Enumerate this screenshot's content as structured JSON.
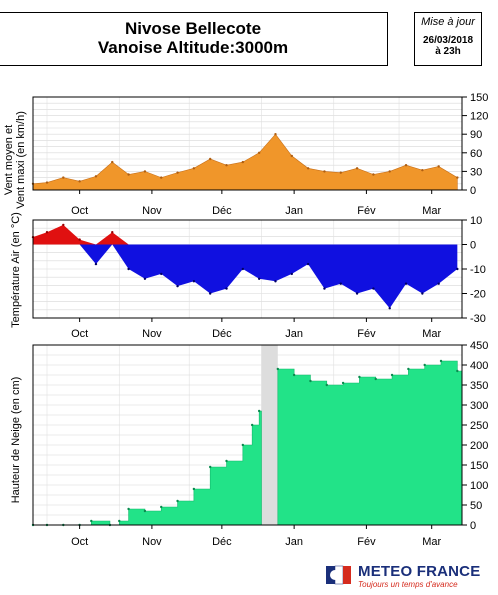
{
  "header": {
    "title_line1": "Nivose Bellecote",
    "title_line2": "Vanoise Altitude:3000m",
    "update_label": "Mise à jour",
    "update_date": "26/03/2018",
    "update_time": "à 23h"
  },
  "logo": {
    "name": "METEO FRANCE",
    "tagline": "Toujours un temps d'avance"
  },
  "colors": {
    "wind": "#f0962a",
    "temp_positive": "#e01010",
    "temp_negative": "#1010e0",
    "snow": "#22e388",
    "gap": "#dddddd"
  },
  "chart_data": [
    {
      "type": "area",
      "ylabel": "Vent moyen et\nVent maxi (en km/h)",
      "ylim": [
        0,
        150
      ],
      "yticks": [
        0,
        30,
        60,
        90,
        120,
        150
      ],
      "x_ticks": [
        "Oct",
        "Nov",
        "Déc",
        "Jan",
        "Fév",
        "Mar"
      ],
      "grid": true,
      "x": [
        "Sep 25",
        "Oct 1",
        "Oct 8",
        "Oct 15",
        "Oct 22",
        "Oct 29",
        "Nov 5",
        "Nov 12",
        "Nov 19",
        "Nov 26",
        "Dec 3",
        "Dec 10",
        "Dec 17",
        "Dec 24",
        "Dec 31",
        "Jan 7",
        "Jan 14",
        "Jan 21",
        "Jan 28",
        "Feb 4",
        "Feb 11",
        "Feb 18",
        "Feb 25",
        "Mar 4",
        "Mar 11",
        "Mar 18",
        "Mar 26"
      ],
      "series": [
        {
          "values": [
            10,
            12,
            20,
            14,
            22,
            45,
            25,
            30,
            20,
            28,
            35,
            50,
            40,
            45,
            60,
            90,
            55,
            35,
            30,
            28,
            35,
            25,
            30,
            40,
            32,
            38,
            20
          ]
        }
      ]
    },
    {
      "type": "area",
      "ylabel": "Température Air (en °C)",
      "ylim": [
        -30,
        10
      ],
      "yticks": [
        -30,
        -20,
        -10,
        0,
        10
      ],
      "x_ticks": [
        "Oct",
        "Nov",
        "Déc",
        "Jan",
        "Fév",
        "Mar"
      ],
      "grid": true,
      "x": [
        "Sep 25",
        "Oct 1",
        "Oct 8",
        "Oct 15",
        "Oct 22",
        "Oct 29",
        "Nov 5",
        "Nov 12",
        "Nov 19",
        "Nov 26",
        "Dec 3",
        "Dec 10",
        "Dec 17",
        "Dec 24",
        "Dec 31",
        "Jan 7",
        "Jan 14",
        "Jan 21",
        "Jan 28",
        "Feb 4",
        "Feb 11",
        "Feb 18",
        "Feb 25",
        "Mar 4",
        "Mar 11",
        "Mar 18",
        "Mar 26"
      ],
      "series": [
        {
          "values": [
            3,
            5,
            8,
            2,
            -8,
            5,
            -10,
            -14,
            -12,
            -17,
            -15,
            -20,
            -18,
            -10,
            -14,
            -15,
            -12,
            -8,
            -18,
            -16,
            -20,
            -18,
            -26,
            -16,
            -20,
            -16,
            -10
          ]
        }
      ]
    },
    {
      "type": "area",
      "ylabel": "Hauteur de Neige (en cm)",
      "ylim": [
        0,
        450
      ],
      "yticks": [
        0,
        50,
        100,
        150,
        200,
        250,
        300,
        350,
        400,
        450
      ],
      "x_ticks": [
        "Oct",
        "Nov",
        "Déc",
        "Jan",
        "Fév",
        "Mar"
      ],
      "grid": true,
      "missing_period": [
        "Jan 1",
        "Jan 8"
      ],
      "x": [
        "Sep 25",
        "Oct 1",
        "Oct 8",
        "Oct 15",
        "Oct 20",
        "Oct 28",
        "Nov 1",
        "Nov 5",
        "Nov 12",
        "Nov 19",
        "Nov 26",
        "Dec 3",
        "Dec 10",
        "Dec 17",
        "Dec 24",
        "Dec 28",
        "Dec 31",
        "Jan 8",
        "Jan 15",
        "Jan 22",
        "Jan 29",
        "Feb 5",
        "Feb 12",
        "Feb 19",
        "Feb 26",
        "Mar 5",
        "Mar 12",
        "Mar 19",
        "Mar 26"
      ],
      "series": [
        {
          "values": [
            0,
            0,
            0,
            0,
            10,
            0,
            10,
            40,
            35,
            45,
            60,
            90,
            145,
            160,
            200,
            250,
            285,
            390,
            375,
            360,
            350,
            355,
            370,
            365,
            375,
            390,
            400,
            410,
            385
          ]
        }
      ]
    }
  ]
}
